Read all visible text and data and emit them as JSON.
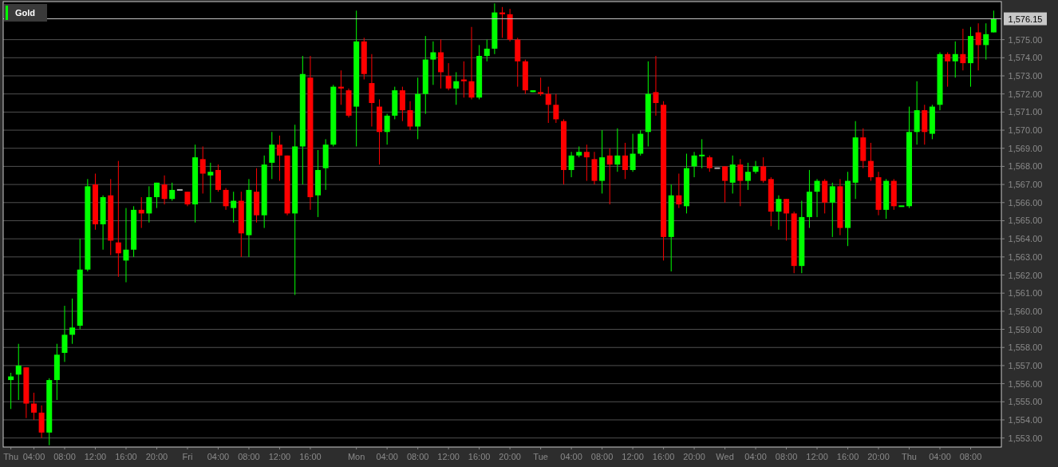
{
  "chart_data": {
    "type": "candlestick",
    "categories": [
      "Thu",
      null,
      null,
      "04:00",
      null,
      null,
      null,
      "08:00",
      null,
      null,
      null,
      "12:00",
      null,
      null,
      null,
      "16:00",
      null,
      null,
      null,
      "20:00",
      null,
      null,
      null,
      "Fri",
      null,
      null,
      null,
      "04:00",
      null,
      null,
      null,
      "08:00",
      null,
      null,
      null,
      "12:00",
      null,
      null,
      null,
      "16:00",
      null,
      null,
      null,
      null,
      null,
      "Mon",
      null,
      null,
      null,
      "04:00",
      null,
      null,
      null,
      "08:00",
      null,
      null,
      null,
      "12:00",
      null,
      null,
      null,
      "16:00",
      null,
      null,
      null,
      "20:00",
      null,
      null,
      null,
      "Tue",
      null,
      null,
      null,
      "04:00",
      null,
      null,
      null,
      "08:00",
      null,
      null,
      null,
      "12:00",
      null,
      null,
      null,
      "16:00",
      null,
      null,
      null,
      "20:00",
      null,
      null,
      null,
      "Wed",
      null,
      null,
      null,
      "04:00",
      null,
      null,
      null,
      "08:00",
      null,
      null,
      null,
      "12:00",
      null,
      null,
      null,
      "16:00",
      null,
      null,
      null,
      "20:00",
      null,
      null,
      null,
      "Thu",
      null,
      null,
      null,
      "04:00",
      null,
      null,
      null,
      "08:00",
      null,
      null,
      null
    ],
    "series": [
      {
        "name": "Gold",
        "color": "#00ff00",
        "colors": [
          "#00ff00",
          "#00ff00",
          "#ff0000",
          "#ff0000",
          "#ff0000",
          "#00ff00",
          "#00ff00",
          "#00ff00",
          "#00ff00",
          "#00ff00",
          "#00ff00",
          "#ff0000",
          "#00ff00",
          "#ff0000",
          "#ff0000",
          "#00ff00",
          "#00ff00",
          "#ff0000",
          "#00ff00",
          "#00ff00",
          "#ff0000",
          "#00ff00",
          "#aaaaaa",
          "#ff0000",
          "#00ff00",
          "#ff0000",
          "#00ff00",
          "#ff0000",
          "#ff0000",
          "#00ff00",
          "#ff0000",
          "#00ff00",
          "#ff0000",
          "#00ff00",
          "#00ff00",
          "#ff0000",
          "#ff0000",
          "#00ff00",
          "#00ff00",
          "#ff0000",
          "#00ff00",
          "#00ff00",
          "#00ff00",
          "#ff0000",
          "#ff0000",
          "#00ff00",
          "#ff0000",
          "#ff0000",
          "#ff0000",
          "#00ff00",
          "#00ff00",
          "#ff0000",
          "#ff0000",
          "#00ff00",
          "#00ff00",
          "#00ff00",
          "#ff0000",
          "#ff0000",
          "#00ff00",
          "#ff0000",
          "#ff0000",
          "#00ff00",
          "#00ff00",
          "#00ff00",
          "#ff0000",
          "#ff0000",
          "#ff0000",
          "#ff0000",
          "#00ff00",
          "#ff0000",
          "#ff0000",
          "#ff0000",
          "#ff0000",
          "#00ff00",
          "#00ff00",
          "#ff0000",
          "#ff0000",
          "#00ff00",
          "#ff0000",
          "#00ff00",
          "#ff0000",
          "#00ff00",
          "#00ff00",
          "#00ff00",
          "#ff0000",
          "#ff0000",
          "#00ff00",
          "#ff0000",
          "#00ff00",
          "#00ff00",
          "#00ff00",
          "#ff0000",
          "#aaaaaa",
          "#ff0000",
          "#00ff00",
          "#ff0000",
          "#00ff00",
          "#00ff00",
          "#ff0000",
          "#ff0000",
          "#00ff00",
          "#ff0000",
          "#ff0000",
          "#00ff00",
          "#00ff00",
          "#00ff00",
          "#ff0000",
          "#00ff00",
          "#ff0000",
          "#00ff00",
          "#00ff00",
          "#ff0000",
          "#ff0000",
          "#ff0000",
          "#00ff00",
          "#ff0000",
          "#00ff00",
          "#00ff00",
          "#00ff00",
          "#ff0000",
          "#00ff00",
          "#00ff00",
          "#ff0000",
          "#00ff00",
          "#ff0000",
          "#00ff00",
          "#ff0000",
          "#00ff00",
          "#00ff00"
        ],
        "ohlc": [
          [
            1556.2,
            1556.6,
            1554.6,
            1556.4
          ],
          [
            1556.5,
            1558.2,
            1555.1,
            1557.0
          ],
          [
            1556.9,
            1556.9,
            1554.1,
            1554.9
          ],
          [
            1554.9,
            1555.5,
            1554.0,
            1554.4
          ],
          [
            1554.4,
            1554.8,
            1553.0,
            1553.3
          ],
          [
            1553.3,
            1556.3,
            1552.6,
            1556.2
          ],
          [
            1556.2,
            1558.2,
            1555.1,
            1557.6
          ],
          [
            1557.7,
            1560.3,
            1557.2,
            1558.7
          ],
          [
            1558.7,
            1560.7,
            1558.2,
            1559.1
          ],
          [
            1559.2,
            1564.0,
            1559.0,
            1562.3
          ],
          [
            1562.3,
            1567.3,
            1562.2,
            1566.9
          ],
          [
            1567.0,
            1567.6,
            1564.5,
            1564.8
          ],
          [
            1564.8,
            1566.4,
            1563.4,
            1566.3
          ],
          [
            1566.4,
            1567.3,
            1563.1,
            1563.9
          ],
          [
            1563.8,
            1568.3,
            1561.9,
            1563.2
          ],
          [
            1562.8,
            1565.7,
            1561.6,
            1563.4
          ],
          [
            1563.4,
            1565.8,
            1563.0,
            1565.6
          ],
          [
            1565.6,
            1566.3,
            1564.6,
            1565.4
          ],
          [
            1565.4,
            1566.9,
            1564.9,
            1566.3
          ],
          [
            1566.3,
            1567.1,
            1565.7,
            1567.1
          ],
          [
            1567.0,
            1567.5,
            1565.9,
            1566.2
          ],
          [
            1566.2,
            1567.1,
            1566.1,
            1566.7
          ],
          [
            1566.7,
            1566.7,
            1566.7,
            1566.7
          ],
          [
            1566.6,
            1566.6,
            1565.8,
            1565.9
          ],
          [
            1565.9,
            1569.2,
            1564.9,
            1568.5
          ],
          [
            1568.4,
            1569.1,
            1566.5,
            1567.6
          ],
          [
            1567.5,
            1568.2,
            1566.0,
            1567.7
          ],
          [
            1567.8,
            1568.1,
            1566.6,
            1566.7
          ],
          [
            1566.7,
            1566.8,
            1565.6,
            1565.8
          ],
          [
            1565.7,
            1566.6,
            1564.9,
            1566.1
          ],
          [
            1566.1,
            1566.6,
            1563.0,
            1564.3
          ],
          [
            1564.2,
            1567.3,
            1563.0,
            1566.7
          ],
          [
            1566.6,
            1567.9,
            1564.9,
            1565.3
          ],
          [
            1565.3,
            1568.6,
            1564.6,
            1568.1
          ],
          [
            1568.2,
            1569.9,
            1567.3,
            1569.2
          ],
          [
            1569.2,
            1569.7,
            1567.2,
            1568.6
          ],
          [
            1568.6,
            1568.6,
            1565.3,
            1565.4
          ],
          [
            1565.4,
            1570.3,
            1560.9,
            1569.1
          ],
          [
            1569.1,
            1574.1,
            1567.0,
            1573.1
          ],
          [
            1572.9,
            1574.1,
            1565.6,
            1566.3
          ],
          [
            1566.4,
            1568.9,
            1565.2,
            1567.8
          ],
          [
            1567.9,
            1569.5,
            1566.7,
            1569.2
          ],
          [
            1569.2,
            1572.5,
            1569.1,
            1572.4
          ],
          [
            1572.4,
            1573.3,
            1571.4,
            1572.3
          ],
          [
            1572.2,
            1572.3,
            1570.7,
            1570.8
          ],
          [
            1571.3,
            1576.6,
            1569.1,
            1574.9
          ],
          [
            1574.9,
            1575.1,
            1572.8,
            1573.1
          ],
          [
            1572.6,
            1574.2,
            1570.2,
            1571.5
          ],
          [
            1571.3,
            1571.7,
            1568.1,
            1569.9
          ],
          [
            1569.9,
            1570.9,
            1569.2,
            1570.8
          ],
          [
            1570.8,
            1572.4,
            1570.6,
            1572.2
          ],
          [
            1572.2,
            1572.4,
            1570.5,
            1571.1
          ],
          [
            1571.1,
            1571.6,
            1570.0,
            1570.2
          ],
          [
            1570.2,
            1572.9,
            1569.5,
            1572.0
          ],
          [
            1572.0,
            1575.2,
            1570.9,
            1573.9
          ],
          [
            1573.9,
            1574.9,
            1572.5,
            1574.3
          ],
          [
            1574.3,
            1575.0,
            1572.3,
            1573.2
          ],
          [
            1573.0,
            1573.7,
            1572.2,
            1572.3
          ],
          [
            1572.3,
            1573.2,
            1571.4,
            1572.7
          ],
          [
            1572.8,
            1573.8,
            1571.8,
            1572.7
          ],
          [
            1572.7,
            1575.7,
            1571.7,
            1571.8
          ],
          [
            1571.8,
            1574.7,
            1571.7,
            1574.1
          ],
          [
            1574.1,
            1575.0,
            1573.8,
            1574.5
          ],
          [
            1574.5,
            1577.0,
            1574.2,
            1576.5
          ],
          [
            1576.5,
            1576.8,
            1575.1,
            1576.4
          ],
          [
            1576.4,
            1576.7,
            1574.9,
            1575.0
          ],
          [
            1575.0,
            1575.1,
            1572.4,
            1573.8
          ],
          [
            1573.8,
            1573.9,
            1572.0,
            1572.2
          ],
          [
            1572.1,
            1572.2,
            1572.1,
            1572.2
          ],
          [
            1572.1,
            1572.9,
            1571.9,
            1572.0
          ],
          [
            1572.0,
            1572.4,
            1570.4,
            1571.4
          ],
          [
            1571.4,
            1572.0,
            1570.4,
            1570.6
          ],
          [
            1570.5,
            1570.6,
            1567.0,
            1567.8
          ],
          [
            1567.8,
            1568.8,
            1567.4,
            1568.6
          ],
          [
            1568.6,
            1569.1,
            1568.5,
            1568.8
          ],
          [
            1568.8,
            1569.2,
            1567.2,
            1568.5
          ],
          [
            1568.4,
            1568.8,
            1567.0,
            1567.2
          ],
          [
            1567.2,
            1570.0,
            1566.5,
            1568.5
          ],
          [
            1568.6,
            1569.0,
            1565.9,
            1568.1
          ],
          [
            1568.1,
            1570.1,
            1567.7,
            1568.6
          ],
          [
            1568.6,
            1569.3,
            1567.3,
            1567.8
          ],
          [
            1567.8,
            1569.8,
            1567.7,
            1568.7
          ],
          [
            1568.7,
            1570.0,
            1568.6,
            1569.8
          ],
          [
            1569.9,
            1573.8,
            1569.1,
            1572.0
          ],
          [
            1572.1,
            1574.1,
            1570.8,
            1571.5
          ],
          [
            1571.4,
            1571.6,
            1562.8,
            1564.1
          ],
          [
            1564.1,
            1567.0,
            1562.2,
            1566.4
          ],
          [
            1566.4,
            1567.6,
            1565.7,
            1565.9
          ],
          [
            1565.8,
            1568.7,
            1565.4,
            1567.9
          ],
          [
            1568.0,
            1568.8,
            1567.4,
            1568.6
          ],
          [
            1568.55,
            1569.5,
            1567.9,
            1568.6
          ],
          [
            1568.5,
            1568.6,
            1567.7,
            1567.9
          ],
          [
            1567.9,
            1567.9,
            1567.9,
            1567.9
          ],
          [
            1568.0,
            1568.0,
            1566.0,
            1567.2
          ],
          [
            1567.1,
            1568.6,
            1566.5,
            1568.1
          ],
          [
            1568.1,
            1568.4,
            1565.8,
            1567.2
          ],
          [
            1567.2,
            1568.2,
            1566.7,
            1567.7
          ],
          [
            1567.7,
            1568.3,
            1567.6,
            1568.0
          ],
          [
            1568.0,
            1568.5,
            1567.1,
            1567.2
          ],
          [
            1567.3,
            1567.4,
            1564.7,
            1565.5
          ],
          [
            1565.5,
            1566.4,
            1564.5,
            1566.2
          ],
          [
            1566.2,
            1566.2,
            1563.9,
            1565.4
          ],
          [
            1565.4,
            1565.5,
            1562.1,
            1562.5
          ],
          [
            1562.5,
            1566.1,
            1562.1,
            1565.2
          ],
          [
            1565.2,
            1567.8,
            1564.6,
            1566.6
          ],
          [
            1566.6,
            1567.3,
            1565.2,
            1567.2
          ],
          [
            1567.2,
            1567.3,
            1565.4,
            1566.0
          ],
          [
            1566.0,
            1567.1,
            1564.1,
            1566.9
          ],
          [
            1566.9,
            1567.3,
            1564.2,
            1564.6
          ],
          [
            1564.6,
            1567.7,
            1563.6,
            1567.2
          ],
          [
            1567.1,
            1570.5,
            1566.2,
            1569.6
          ],
          [
            1569.6,
            1570.1,
            1567.9,
            1568.3
          ],
          [
            1568.3,
            1569.3,
            1567.2,
            1567.4
          ],
          [
            1567.4,
            1567.7,
            1565.3,
            1565.6
          ],
          [
            1565.6,
            1567.3,
            1565.1,
            1567.2
          ],
          [
            1567.2,
            1567.3,
            1565.6,
            1565.8
          ],
          [
            1565.8,
            1565.8,
            1565.8,
            1565.8
          ],
          [
            1565.8,
            1571.3,
            1565.7,
            1569.9
          ],
          [
            1569.9,
            1572.7,
            1569.2,
            1571.1
          ],
          [
            1571.1,
            1571.4,
            1569.2,
            1569.9
          ],
          [
            1569.8,
            1571.4,
            1569.5,
            1571.3
          ],
          [
            1571.4,
            1574.3,
            1571.1,
            1574.2
          ],
          [
            1574.2,
            1574.3,
            1572.4,
            1573.8
          ],
          [
            1573.8,
            1574.9,
            1572.9,
            1574.2
          ],
          [
            1574.2,
            1575.6,
            1573.3,
            1573.7
          ],
          [
            1573.7,
            1575.7,
            1572.4,
            1575.2
          ],
          [
            1575.4,
            1575.9,
            1573.3,
            1574.7
          ],
          [
            1574.7,
            1575.9,
            1573.9,
            1575.3
          ],
          [
            1575.4,
            1576.6,
            1575.4,
            1576.15
          ]
        ]
      }
    ],
    "ylim": [
      1552.5,
      1577.1
    ],
    "yticks": [
      {
        "value": 1553,
        "label": "1,553.00"
      },
      {
        "value": 1554,
        "label": "1,554.00"
      },
      {
        "value": 1555,
        "label": "1,555.00"
      },
      {
        "value": 1556,
        "label": "1,556.00"
      },
      {
        "value": 1557,
        "label": "1,557.00"
      },
      {
        "value": 1558,
        "label": "1,558.00"
      },
      {
        "value": 1559,
        "label": "1,559.00"
      },
      {
        "value": 1560,
        "label": "1,560.00"
      },
      {
        "value": 1561,
        "label": "1,561.00"
      },
      {
        "value": 1562,
        "label": "1,562.00"
      },
      {
        "value": 1563,
        "label": "1,563.00"
      },
      {
        "value": 1564,
        "label": "1,564.00"
      },
      {
        "value": 1565,
        "label": "1,565.00"
      },
      {
        "value": 1566,
        "label": "1,566.00"
      },
      {
        "value": 1567,
        "label": "1,567.00"
      },
      {
        "value": 1568,
        "label": "1,568.00"
      },
      {
        "value": 1569,
        "label": "1,569.00"
      },
      {
        "value": 1570,
        "label": "1,570.00"
      },
      {
        "value": 1571,
        "label": "1,571.00"
      },
      {
        "value": 1572,
        "label": "1,572.00"
      },
      {
        "value": 1573,
        "label": "1,573.00"
      },
      {
        "value": 1574,
        "label": "1,574.00"
      },
      {
        "value": 1575,
        "label": "1,575.00"
      }
    ],
    "grid": "y",
    "legend": "top left",
    "ref_lines": [
      {
        "axis": "y",
        "value": 1576.15,
        "label": "1,576.15",
        "color": "#c8c8c8"
      }
    ]
  }
}
